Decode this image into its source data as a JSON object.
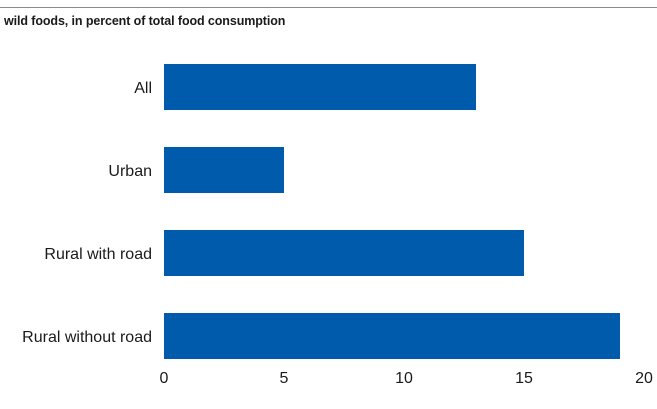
{
  "chart_data": {
    "type": "bar",
    "orientation": "horizontal",
    "title": "wild foods, in percent of total food consumption",
    "categories": [
      "All",
      "Urban",
      "Rural with road",
      "Rural without road"
    ],
    "values": [
      13,
      5,
      15,
      19
    ],
    "xlim": [
      0,
      20
    ],
    "xticks": [
      0,
      5,
      10,
      15,
      20
    ],
    "grid": false,
    "bar_color": "#005bac"
  }
}
